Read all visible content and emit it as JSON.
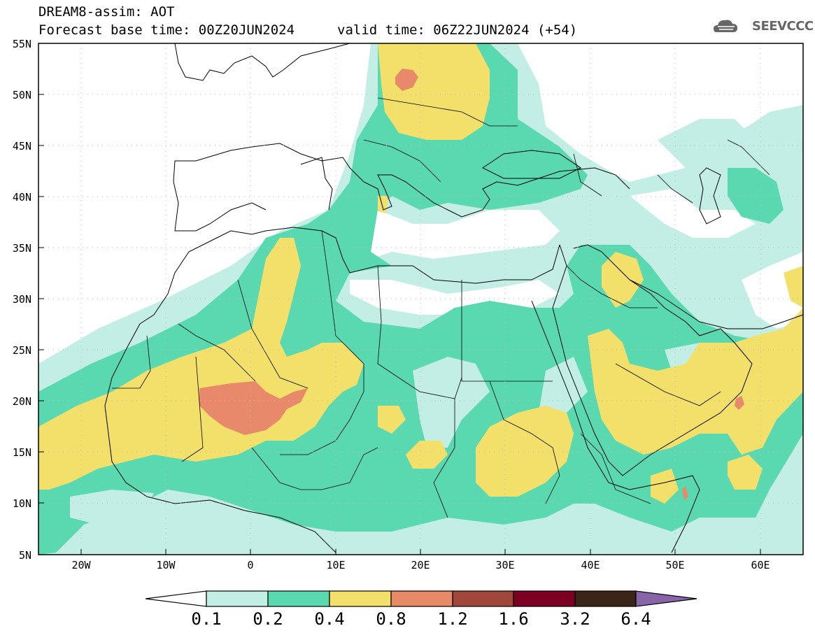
{
  "header": {
    "line1": "DREAM8-assim: AOT",
    "line2": "Forecast base time: 00Z20JUN2024",
    "line3": "valid time: 06Z22JUN2024 (+54)",
    "logo": "SEEVCCC"
  },
  "map": {
    "lat_labels": [
      "55N",
      "50N",
      "45N",
      "40N",
      "35N",
      "30N",
      "25N",
      "20N",
      "15N",
      "10N",
      "5N"
    ],
    "lon_labels": [
      "20W",
      "10W",
      "0",
      "10E",
      "20E",
      "30E",
      "40E",
      "50E",
      "60E"
    ],
    "lon_range": [
      -25,
      65
    ],
    "lat_range": [
      5,
      55
    ]
  },
  "colorbar": {
    "labels": [
      "0.1",
      "0.2",
      "0.4",
      "0.8",
      "1.2",
      "1.6",
      "3.2",
      "6.4"
    ],
    "colors": [
      "#ffffff",
      "#c3eee5",
      "#5ad9b0",
      "#f2e06a",
      "#e88a6a",
      "#a0463a",
      "#7c0020",
      "#3b2418",
      "#8a64a8"
    ]
  }
}
